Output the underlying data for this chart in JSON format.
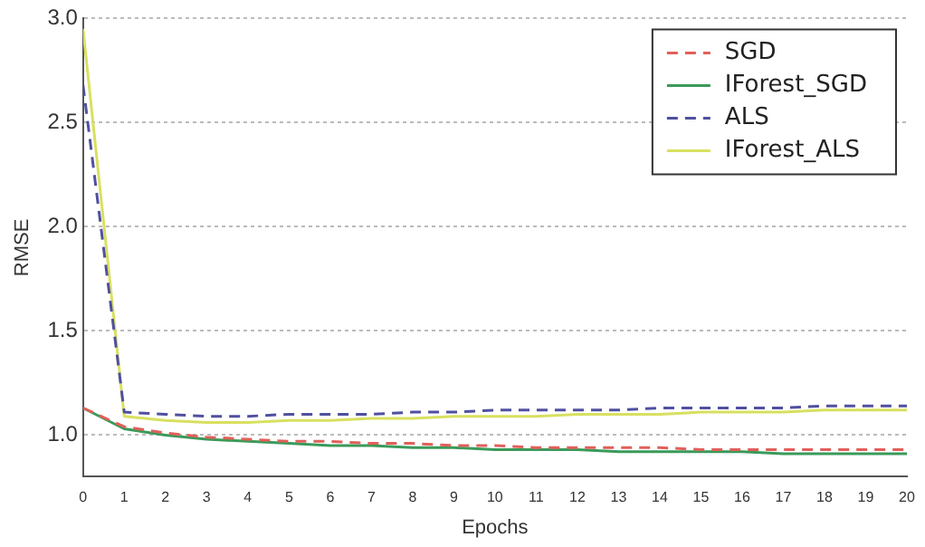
{
  "chart_data": {
    "type": "line",
    "xlabel": "Epochs",
    "ylabel": "RMSE",
    "x": [
      0,
      1,
      2,
      3,
      4,
      5,
      6,
      7,
      8,
      9,
      10,
      11,
      12,
      13,
      14,
      15,
      16,
      17,
      18,
      19,
      20
    ],
    "xlim": [
      0,
      20
    ],
    "xticks": [
      0,
      1,
      2,
      3,
      4,
      5,
      6,
      7,
      8,
      9,
      10,
      11,
      12,
      13,
      14,
      15,
      16,
      17,
      18,
      19,
      20
    ],
    "ylim": [
      0.8,
      3.0
    ],
    "yticks": [
      {
        "value": 1.0,
        "label": "1.0"
      },
      {
        "value": 1.5,
        "label": "1.5"
      },
      {
        "value": 2.0,
        "label": "2.0"
      },
      {
        "value": 2.5,
        "label": "2.5"
      },
      {
        "value": 3.0,
        "label": "3.0"
      }
    ],
    "grid": "y",
    "legend": "top right",
    "marker": "none",
    "series": [
      {
        "name": "SGD",
        "color": "#e0605a",
        "line_style": "dashed",
        "values": [
          1.13,
          1.04,
          1.01,
          0.99,
          0.98,
          0.97,
          0.97,
          0.96,
          0.96,
          0.95,
          0.95,
          0.94,
          0.94,
          0.94,
          0.94,
          0.93,
          0.93,
          0.93,
          0.93,
          0.93,
          0.93
        ]
      },
      {
        "name": "IForest_SGD",
        "color": "#3a9a5a",
        "line_style": "solid",
        "values": [
          1.13,
          1.03,
          1.0,
          0.98,
          0.97,
          0.96,
          0.95,
          0.95,
          0.94,
          0.94,
          0.93,
          0.93,
          0.93,
          0.92,
          0.92,
          0.92,
          0.92,
          0.91,
          0.91,
          0.91,
          0.91
        ]
      },
      {
        "name": "ALS",
        "color": "#5050a0",
        "line_style": "dashed",
        "values": [
          2.68,
          1.11,
          1.1,
          1.09,
          1.09,
          1.1,
          1.1,
          1.1,
          1.11,
          1.11,
          1.12,
          1.12,
          1.12,
          1.12,
          1.13,
          1.13,
          1.13,
          1.13,
          1.14,
          1.14,
          1.14
        ]
      },
      {
        "name": "IForest_ALS",
        "color": "#d8e060",
        "line_style": "solid",
        "values": [
          2.95,
          1.09,
          1.07,
          1.06,
          1.06,
          1.07,
          1.07,
          1.08,
          1.08,
          1.09,
          1.09,
          1.09,
          1.1,
          1.1,
          1.1,
          1.11,
          1.11,
          1.11,
          1.12,
          1.12,
          1.12
        ]
      }
    ]
  }
}
